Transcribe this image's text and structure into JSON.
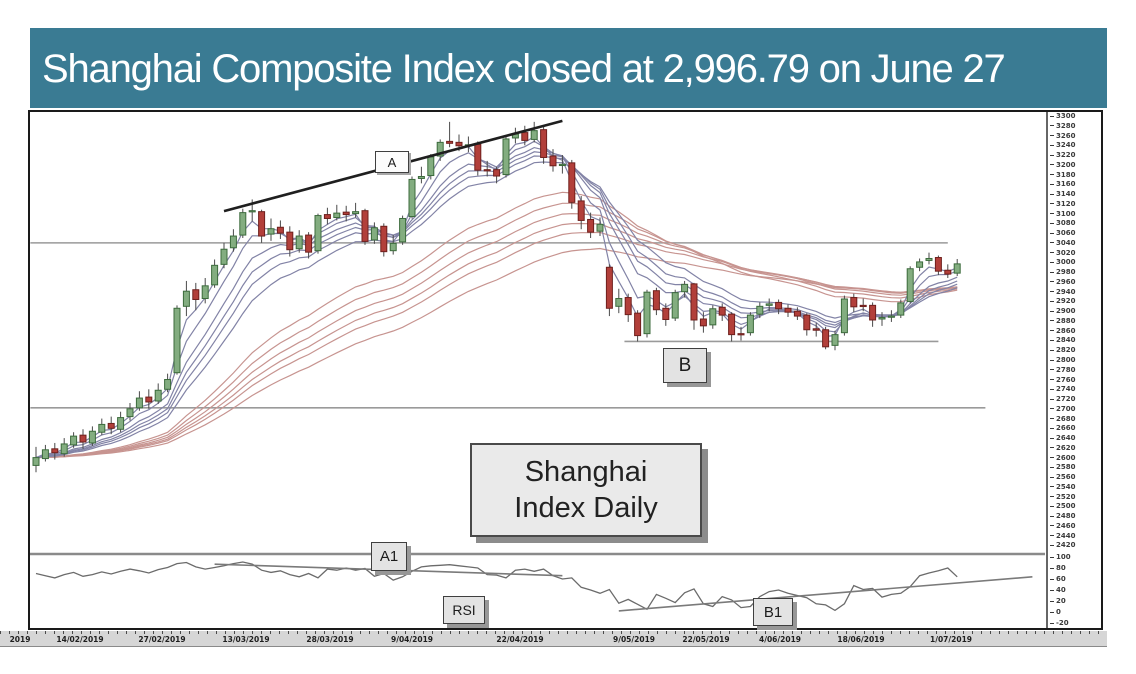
{
  "header": {
    "title": "Shanghai Composite Index closed at 2,996.79 on June 27",
    "bg_color": "#3a7b93",
    "text_color": "#ffffff"
  },
  "chart_data": {
    "type": "candlestick",
    "title": "Shanghai Index Daily",
    "legend_position": "none",
    "grid": "partial-horizontal-levels",
    "x_axis": {
      "labels": [
        "2019",
        "14/02/2019",
        "27/02/2019",
        "13/03/2019",
        "28/03/2019",
        "9/04/2019",
        "22/04/2019",
        "9/05/2019",
        "22/05/2019",
        "4/06/2019",
        "18/06/2019",
        "1/07/2019"
      ]
    },
    "y_axis_price": {
      "min": 2420,
      "max": 3300,
      "step": 20
    },
    "y_axis_rsi": {
      "labels": [
        100,
        80,
        60,
        40,
        20,
        0,
        -20
      ]
    },
    "ohlc_order": [
      "open",
      "high",
      "low",
      "close"
    ],
    "candles": [
      [
        2584,
        2622,
        2570,
        2600
      ],
      [
        2598,
        2626,
        2592,
        2616
      ],
      [
        2618,
        2630,
        2596,
        2610
      ],
      [
        2608,
        2640,
        2602,
        2628
      ],
      [
        2626,
        2652,
        2620,
        2644
      ],
      [
        2646,
        2658,
        2618,
        2632
      ],
      [
        2630,
        2664,
        2624,
        2654
      ],
      [
        2652,
        2680,
        2646,
        2668
      ],
      [
        2670,
        2684,
        2648,
        2660
      ],
      [
        2658,
        2694,
        2652,
        2682
      ],
      [
        2684,
        2712,
        2676,
        2700
      ],
      [
        2702,
        2736,
        2696,
        2722
      ],
      [
        2724,
        2740,
        2700,
        2714
      ],
      [
        2716,
        2752,
        2710,
        2738
      ],
      [
        2740,
        2772,
        2734,
        2760
      ],
      [
        2774,
        2912,
        2770,
        2906
      ],
      [
        2910,
        2962,
        2890,
        2941
      ],
      [
        2944,
        2958,
        2902,
        2924
      ],
      [
        2926,
        2968,
        2916,
        2952
      ],
      [
        2954,
        3006,
        2948,
        2994
      ],
      [
        2996,
        3040,
        2988,
        3027
      ],
      [
        3030,
        3068,
        3022,
        3054
      ],
      [
        3056,
        3110,
        3050,
        3102
      ],
      [
        3104,
        3129,
        3084,
        3106
      ],
      [
        3104,
        3108,
        3040,
        3054
      ],
      [
        3058,
        3090,
        3044,
        3069
      ],
      [
        3072,
        3086,
        3048,
        3060
      ],
      [
        3062,
        3074,
        3012,
        3026
      ],
      [
        3028,
        3066,
        3020,
        3054
      ],
      [
        3056,
        3062,
        3008,
        3021
      ],
      [
        3024,
        3100,
        3018,
        3096
      ],
      [
        3098,
        3112,
        3078,
        3090
      ],
      [
        3092,
        3118,
        3086,
        3101
      ],
      [
        3103,
        3116,
        3084,
        3098
      ],
      [
        3100,
        3122,
        3092,
        3104
      ],
      [
        3106,
        3110,
        3036,
        3043
      ],
      [
        3046,
        3082,
        3038,
        3071
      ],
      [
        3074,
        3080,
        3012,
        3022
      ],
      [
        3024,
        3056,
        3016,
        3039
      ],
      [
        3042,
        3096,
        3036,
        3090
      ],
      [
        3094,
        3176,
        3090,
        3170
      ],
      [
        3172,
        3196,
        3162,
        3176
      ],
      [
        3178,
        3222,
        3170,
        3216
      ],
      [
        3218,
        3252,
        3208,
        3246
      ],
      [
        3248,
        3288,
        3236,
        3244
      ],
      [
        3246,
        3262,
        3228,
        3239
      ],
      [
        3240,
        3258,
        3226,
        3241
      ],
      [
        3242,
        3248,
        3178,
        3189
      ],
      [
        3190,
        3208,
        3176,
        3188
      ],
      [
        3190,
        3196,
        3162,
        3177
      ],
      [
        3180,
        3260,
        3174,
        3253
      ],
      [
        3255,
        3276,
        3244,
        3263
      ],
      [
        3266,
        3280,
        3240,
        3250
      ],
      [
        3252,
        3288,
        3246,
        3270
      ],
      [
        3272,
        3278,
        3202,
        3215
      ],
      [
        3218,
        3232,
        3186,
        3198
      ],
      [
        3200,
        3220,
        3182,
        3201
      ],
      [
        3204,
        3210,
        3110,
        3123
      ],
      [
        3126,
        3136,
        3068,
        3086
      ],
      [
        3088,
        3102,
        3050,
        3062
      ],
      [
        3064,
        3092,
        3054,
        3078
      ],
      [
        2990,
        2996,
        2890,
        2906
      ],
      [
        2910,
        2946,
        2896,
        2926
      ],
      [
        2928,
        2936,
        2878,
        2893
      ],
      [
        2896,
        2902,
        2838,
        2850
      ],
      [
        2854,
        2944,
        2846,
        2939
      ],
      [
        2942,
        2948,
        2892,
        2903
      ],
      [
        2906,
        2916,
        2870,
        2883
      ],
      [
        2886,
        2944,
        2880,
        2938
      ],
      [
        2940,
        2962,
        2928,
        2955
      ],
      [
        2956,
        2958,
        2862,
        2882
      ],
      [
        2884,
        2898,
        2856,
        2870
      ],
      [
        2872,
        2912,
        2864,
        2905
      ],
      [
        2908,
        2916,
        2880,
        2892
      ],
      [
        2894,
        2898,
        2838,
        2852
      ],
      [
        2854,
        2868,
        2840,
        2853
      ],
      [
        2856,
        2898,
        2850,
        2892
      ],
      [
        2894,
        2918,
        2886,
        2910
      ],
      [
        2912,
        2926,
        2900,
        2915
      ],
      [
        2918,
        2924,
        2894,
        2905
      ],
      [
        2906,
        2914,
        2888,
        2898
      ],
      [
        2900,
        2908,
        2882,
        2890
      ],
      [
        2892,
        2896,
        2850,
        2862
      ],
      [
        2864,
        2876,
        2848,
        2861
      ],
      [
        2862,
        2868,
        2822,
        2827
      ],
      [
        2830,
        2860,
        2820,
        2852
      ],
      [
        2856,
        2932,
        2850,
        2925
      ],
      [
        2928,
        2936,
        2898,
        2909
      ],
      [
        2912,
        2926,
        2900,
        2910
      ],
      [
        2912,
        2918,
        2868,
        2882
      ],
      [
        2884,
        2898,
        2870,
        2887
      ],
      [
        2890,
        2902,
        2878,
        2890
      ],
      [
        2892,
        2924,
        2886,
        2917
      ],
      [
        2920,
        2992,
        2916,
        2987
      ],
      [
        2990,
        3008,
        2982,
        3001
      ],
      [
        3004,
        3020,
        2996,
        3008
      ],
      [
        3010,
        3014,
        2974,
        2982
      ],
      [
        2984,
        2996,
        2968,
        2976
      ],
      [
        2978,
        3007,
        2972,
        2997
      ]
    ],
    "rsi": [
      70,
      66,
      62,
      68,
      72,
      65,
      68,
      73,
      69,
      74,
      78,
      75,
      71,
      77,
      81,
      88,
      90,
      82,
      78,
      81,
      84,
      88,
      91,
      87,
      76,
      72,
      75,
      68,
      64,
      70,
      62,
      78,
      76,
      80,
      76,
      79,
      65,
      70,
      58,
      64,
      74,
      82,
      84,
      85,
      86,
      84,
      82,
      80,
      68,
      67,
      62,
      76,
      78,
      74,
      78,
      66,
      60,
      62,
      45,
      40,
      34,
      41,
      16,
      23,
      14,
      5,
      32,
      25,
      17,
      35,
      42,
      15,
      10,
      28,
      22,
      8,
      10,
      28,
      37,
      40,
      34,
      30,
      26,
      15,
      13,
      3,
      15,
      48,
      41,
      43,
      27,
      32,
      34,
      46,
      66,
      71,
      75,
      80,
      64
    ],
    "ma_short_periods": [
      3,
      5,
      8,
      10,
      12,
      15
    ],
    "ma_long_periods": [
      30,
      35,
      40,
      45,
      50,
      60
    ],
    "levels": [
      {
        "price": 3040,
        "d1": -0.6,
        "d2": 97
      },
      {
        "price": 2702,
        "d1": -0.6,
        "d2": 101
      },
      {
        "price": 2838,
        "d1": 62.6,
        "d2": 96
      }
    ],
    "trendline_a": {
      "d1": 20,
      "p1": 3105,
      "d2": 56,
      "p2": 3290
    },
    "rsi_trendlines": {
      "a1": {
        "d1": 19,
        "v1": 87,
        "d2": 56,
        "v2": 66
      },
      "b1": {
        "d1": 62,
        "v1": 2,
        "d2": 106,
        "v2": 64
      }
    },
    "annotations": {
      "a": "A",
      "b": "B",
      "a1": "A1",
      "b1": "B1",
      "rsi": "RSI",
      "box_line1": "Shanghai",
      "box_line2": "Index Daily"
    },
    "colors": {
      "up_fill": "#83ad80",
      "up_border": "#3c6b3c",
      "down_fill": "#b23f3a",
      "down_border": "#6f201d",
      "wick": "#4a4a4a",
      "ma_short": "#8283a6",
      "ma_long": "#c79490",
      "trendline": "#1f1f1f",
      "level": "#9a9a9a",
      "rsi_line": "#6b6b6b",
      "rsi_trend": "#7a7a7a",
      "separator": "#8a8a8a",
      "frame": "#1a1a1a"
    }
  }
}
